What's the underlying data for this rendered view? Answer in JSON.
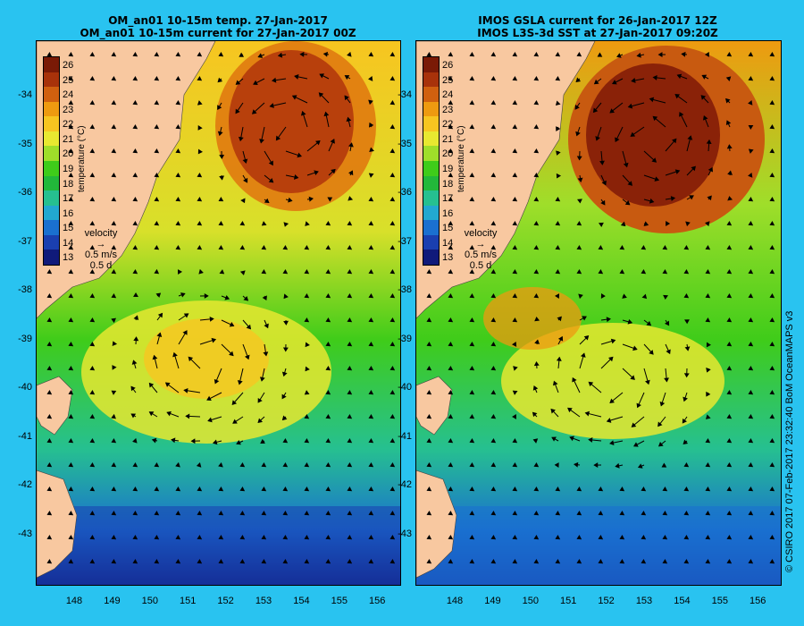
{
  "left_panel": {
    "title_line1": "OM_an01 10-15m temp. 27-Jan-2017",
    "title_line2": "OM_an01 10-15m current for 27-Jan-2017 00Z"
  },
  "right_panel": {
    "title_line1": "IMOS GSLA current for 26-Jan-2017 12Z",
    "title_line2": "IMOS L3S-3d SST at 27-Jan-2017 09:20Z"
  },
  "colorbar": {
    "ticks": [
      "26",
      "25",
      "24",
      "23",
      "22",
      "21",
      "20",
      "19",
      "18",
      "17",
      "16",
      "15",
      "14",
      "13"
    ],
    "unit_label": "temperature (°C)",
    "colors": [
      "#7a1a06",
      "#a8320a",
      "#d0600f",
      "#ee9a10",
      "#f7c520",
      "#e8e830",
      "#9fde2a",
      "#3fcc1a",
      "#22b83a",
      "#26c090",
      "#22a8d0",
      "#1a70d0",
      "#1a3fb0",
      "#101a7a"
    ]
  },
  "velocity_legend": {
    "title": "velocity",
    "speed": "0.5 m/s",
    "duration": "0.5 d"
  },
  "axes": {
    "latitude_labels": [
      "-34",
      "-35",
      "-36",
      "-37",
      "-38",
      "-39",
      "-40",
      "-41",
      "-42",
      "-43"
    ],
    "longitude_labels": [
      "148",
      "149",
      "150",
      "151",
      "152",
      "153",
      "154",
      "155",
      "156"
    ]
  },
  "credit": "© CSIRO 2017   07-Feb-2017 23:32:40 BoM OceanMAPS v3",
  "colors": {
    "background": "#29c3f0",
    "land": "#f8c8a0"
  }
}
